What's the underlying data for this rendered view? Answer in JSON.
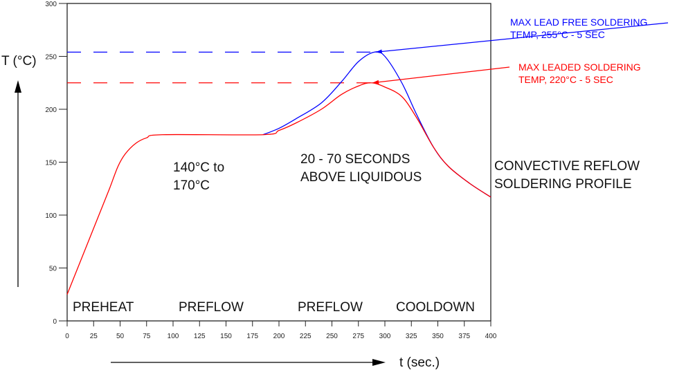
{
  "chart_data": {
    "type": "line",
    "title": "CONVECTIVE REFLOW SOLDERING PROFILE",
    "title_lines": [
      "CONVECTIVE REFLOW",
      "SOLDERING PROFILE"
    ],
    "xlabel": "t (sec.)",
    "ylabel": "T (°C)",
    "xlim": [
      0,
      400
    ],
    "ylim": [
      0,
      300
    ],
    "xticks": [
      0,
      25,
      50,
      75,
      100,
      125,
      150,
      175,
      200,
      225,
      250,
      275,
      300,
      325,
      350,
      375,
      400
    ],
    "yticks": [
      0,
      50,
      100,
      150,
      200,
      250,
      300
    ],
    "grid": false,
    "series": [
      {
        "color": "#ff0000",
        "points": [
          [
            0,
            25
          ],
          [
            10,
            50
          ],
          [
            20,
            75
          ],
          [
            30,
            100
          ],
          [
            40,
            125
          ],
          [
            48,
            146
          ],
          [
            55,
            158
          ],
          [
            65,
            168
          ],
          [
            75,
            173
          ],
          [
            90,
            176
          ],
          [
            185,
            176
          ],
          [
            200,
            180
          ],
          [
            216,
            187
          ],
          [
            240,
            200
          ],
          [
            259,
            214
          ],
          [
            275,
            222
          ],
          [
            287,
            225
          ],
          [
            300,
            221
          ],
          [
            316,
            212
          ],
          [
            330,
            192
          ],
          [
            346,
            164
          ],
          [
            360,
            146
          ],
          [
            380,
            130
          ],
          [
            400,
            117
          ]
        ]
      },
      {
        "color": "#0000ff",
        "points": [
          [
            185,
            176
          ],
          [
            200,
            182
          ],
          [
            216,
            191
          ],
          [
            240,
            206
          ],
          [
            259,
            226
          ],
          [
            275,
            245
          ],
          [
            290,
            254
          ],
          [
            300,
            250
          ],
          [
            316,
            225
          ],
          [
            330,
            195
          ],
          [
            346,
            164
          ],
          [
            360,
            146
          ],
          [
            380,
            130
          ],
          [
            400,
            117
          ]
        ]
      }
    ],
    "reference_lines": [
      {
        "y": 254,
        "color": "#0000ff"
      },
      {
        "y": 225,
        "color": "#ff0000"
      }
    ],
    "annotations": {
      "lead_free": {
        "lines": [
          "MAX LEAD FREE SOLDERING",
          "TEMP, 255°C - 5 SEC"
        ],
        "color": "#0000ff",
        "target": [
          290,
          254
        ]
      },
      "leaded": {
        "lines": [
          "MAX LEADED SOLDERING",
          "TEMP, 220°C - 5 SEC"
        ],
        "color": "#ff0000",
        "target": [
          287,
          225
        ]
      },
      "plateau": [
        "140°C to",
        "170°C"
      ],
      "liquidous": [
        "20 - 70 SECONDS",
        "ABOVE LIQUIDOUS"
      ],
      "phases": [
        "PREHEAT",
        "PREFLOW",
        "PREFLOW",
        "COOLDOWN"
      ]
    }
  }
}
